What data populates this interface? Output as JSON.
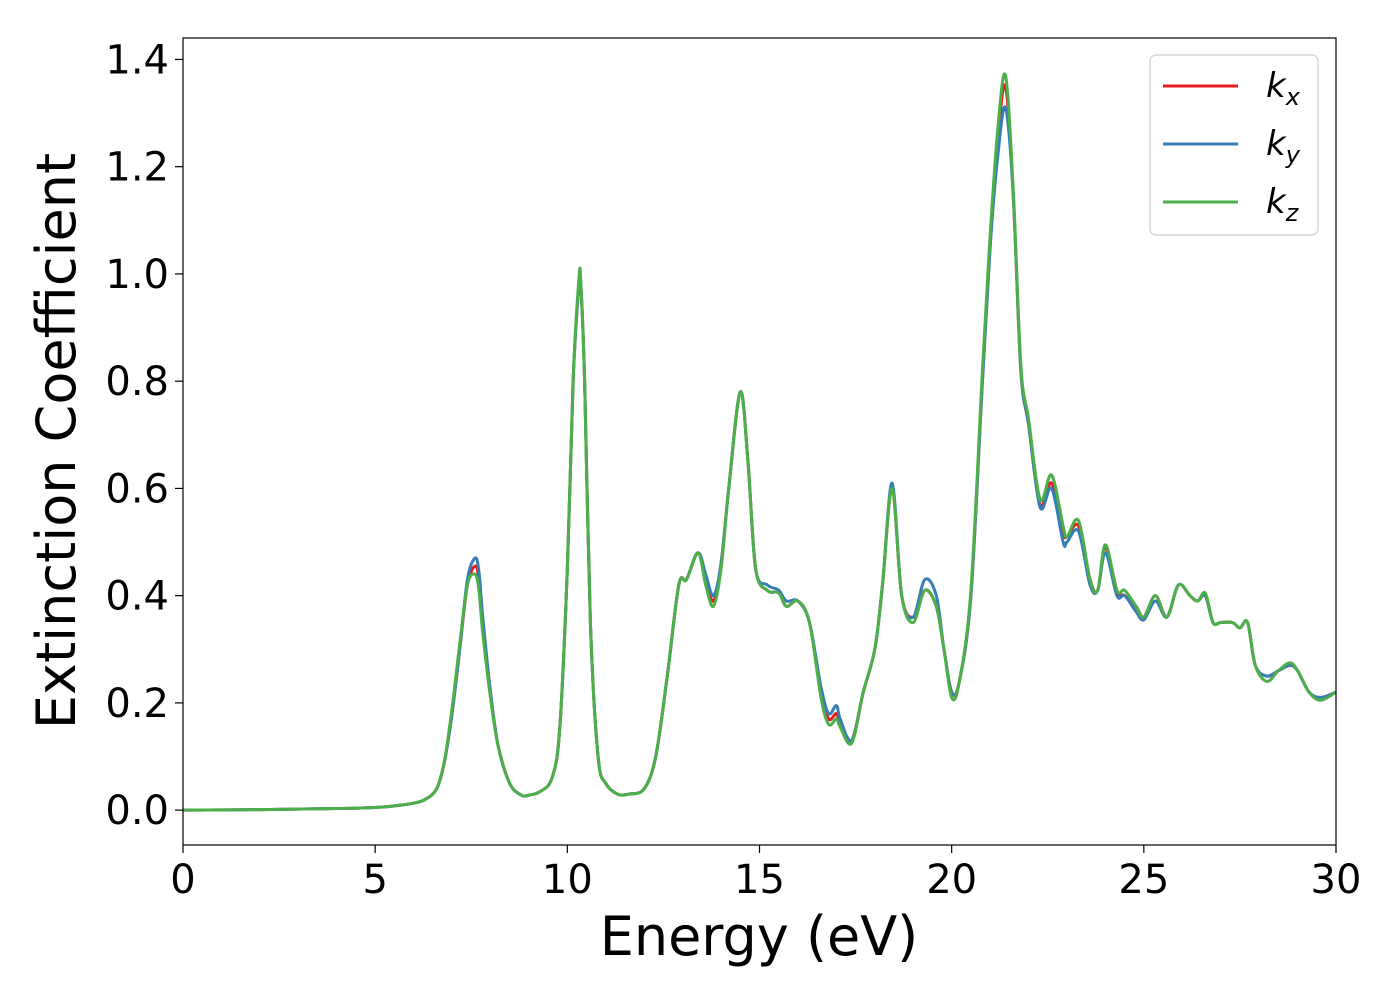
{
  "chart_data": {
    "type": "line",
    "xlabel": "Energy (eV)",
    "ylabel": "Extinction Coefficient",
    "xlim": [
      0,
      30
    ],
    "ylim": [
      -0.065,
      1.44
    ],
    "x_ticks": [
      "0",
      "5",
      "10",
      "15",
      "20",
      "25",
      "30"
    ],
    "y_ticks": [
      "0.0",
      "0.2",
      "0.4",
      "0.6",
      "0.8",
      "1.0",
      "1.2",
      "1.4"
    ],
    "grid": false,
    "legend_position": "top-right",
    "series": [
      {
        "name": "k_x",
        "legend_main": "k",
        "legend_sub": "x",
        "color": "#e41a1c",
        "x": [
          0,
          2,
          4,
          5,
          5.5,
          6,
          6.3,
          6.6,
          6.8,
          7.0,
          7.2,
          7.4,
          7.6,
          7.7,
          7.8,
          8.0,
          8.2,
          8.5,
          8.8,
          9.0,
          9.3,
          9.6,
          9.8,
          10.0,
          10.15,
          10.3,
          10.35,
          10.45,
          10.6,
          10.8,
          11.0,
          11.3,
          11.6,
          12.0,
          12.3,
          12.6,
          12.9,
          13.1,
          13.4,
          13.6,
          13.8,
          14.0,
          14.2,
          14.5,
          14.7,
          14.9,
          15.2,
          15.5,
          15.7,
          16.0,
          16.3,
          16.6,
          16.8,
          17.0,
          17.1,
          17.4,
          17.7,
          18.0,
          18.2,
          18.45,
          18.7,
          19.0,
          19.3,
          19.6,
          19.8,
          20.0,
          20.2,
          20.5,
          20.8,
          21.0,
          21.2,
          21.4,
          21.6,
          21.8,
          22.0,
          22.3,
          22.6,
          22.9,
          23.0,
          23.3,
          23.6,
          23.8,
          24.0,
          24.3,
          24.5,
          24.8,
          25.0,
          25.3,
          25.6,
          25.9,
          26.2,
          26.4,
          26.6,
          26.8,
          27.0,
          27.3,
          27.5,
          27.7,
          27.9,
          28.2,
          28.5,
          28.8,
          29.0,
          29.3,
          29.6,
          30.0
        ],
        "y": [
          0,
          0.001,
          0.003,
          0.005,
          0.008,
          0.013,
          0.02,
          0.04,
          0.09,
          0.18,
          0.3,
          0.42,
          0.455,
          0.43,
          0.35,
          0.22,
          0.12,
          0.05,
          0.028,
          0.028,
          0.035,
          0.06,
          0.15,
          0.45,
          0.8,
          0.98,
          0.98,
          0.8,
          0.35,
          0.1,
          0.05,
          0.03,
          0.03,
          0.04,
          0.1,
          0.25,
          0.42,
          0.43,
          0.48,
          0.43,
          0.39,
          0.46,
          0.6,
          0.78,
          0.65,
          0.45,
          0.41,
          0.405,
          0.38,
          0.39,
          0.35,
          0.22,
          0.17,
          0.18,
          0.16,
          0.13,
          0.22,
          0.3,
          0.42,
          0.6,
          0.4,
          0.36,
          0.41,
          0.38,
          0.3,
          0.22,
          0.24,
          0.4,
          0.8,
          1.05,
          1.25,
          1.35,
          1.15,
          0.82,
          0.72,
          0.57,
          0.61,
          0.52,
          0.51,
          0.53,
          0.43,
          0.41,
          0.49,
          0.41,
          0.4,
          0.38,
          0.36,
          0.4,
          0.36,
          0.42,
          0.4,
          0.39,
          0.4,
          0.35,
          0.35,
          0.35,
          0.34,
          0.35,
          0.27,
          0.25,
          0.26,
          0.27,
          0.26,
          0.22,
          0.21,
          0.22
        ]
      },
      {
        "name": "k_y",
        "legend_main": "k",
        "legend_sub": "y",
        "color": "#377eb8",
        "x": [
          0,
          2,
          4,
          5,
          5.5,
          6,
          6.3,
          6.6,
          6.8,
          7.0,
          7.2,
          7.4,
          7.6,
          7.7,
          7.8,
          8.0,
          8.2,
          8.5,
          8.8,
          9.0,
          9.3,
          9.6,
          9.8,
          10.0,
          10.15,
          10.3,
          10.35,
          10.45,
          10.6,
          10.8,
          11.0,
          11.3,
          11.6,
          12.0,
          12.3,
          12.6,
          12.9,
          13.1,
          13.4,
          13.6,
          13.8,
          14.0,
          14.2,
          14.5,
          14.7,
          14.9,
          15.2,
          15.5,
          15.7,
          16.0,
          16.3,
          16.6,
          16.8,
          17.0,
          17.1,
          17.4,
          17.7,
          18.0,
          18.2,
          18.45,
          18.7,
          19.0,
          19.3,
          19.6,
          19.8,
          20.0,
          20.2,
          20.5,
          20.8,
          21.0,
          21.2,
          21.4,
          21.6,
          21.8,
          22.0,
          22.3,
          22.6,
          22.9,
          23.0,
          23.3,
          23.6,
          23.8,
          24.0,
          24.3,
          24.5,
          24.8,
          25.0,
          25.3,
          25.6,
          25.9,
          26.2,
          26.4,
          26.6,
          26.8,
          27.0,
          27.3,
          27.5,
          27.7,
          27.9,
          28.2,
          28.5,
          28.8,
          29.0,
          29.3,
          29.6,
          30.0
        ],
        "y": [
          0,
          0.001,
          0.003,
          0.005,
          0.008,
          0.013,
          0.02,
          0.04,
          0.09,
          0.18,
          0.3,
          0.43,
          0.47,
          0.445,
          0.36,
          0.22,
          0.12,
          0.05,
          0.028,
          0.028,
          0.035,
          0.06,
          0.15,
          0.45,
          0.8,
          0.98,
          0.98,
          0.8,
          0.35,
          0.1,
          0.05,
          0.03,
          0.03,
          0.04,
          0.1,
          0.25,
          0.42,
          0.43,
          0.48,
          0.44,
          0.4,
          0.46,
          0.6,
          0.78,
          0.65,
          0.45,
          0.42,
          0.41,
          0.39,
          0.39,
          0.35,
          0.23,
          0.18,
          0.195,
          0.17,
          0.13,
          0.22,
          0.3,
          0.42,
          0.61,
          0.4,
          0.36,
          0.43,
          0.4,
          0.3,
          0.22,
          0.24,
          0.4,
          0.8,
          1.05,
          1.22,
          1.31,
          1.15,
          0.82,
          0.72,
          0.565,
          0.6,
          0.5,
          0.5,
          0.52,
          0.42,
          0.41,
          0.48,
          0.4,
          0.4,
          0.37,
          0.355,
          0.39,
          0.36,
          0.42,
          0.4,
          0.39,
          0.4,
          0.35,
          0.35,
          0.35,
          0.34,
          0.35,
          0.27,
          0.25,
          0.26,
          0.27,
          0.26,
          0.22,
          0.21,
          0.22
        ]
      },
      {
        "name": "k_z",
        "legend_main": "k",
        "legend_sub": "z",
        "color": "#4daf4a",
        "x": [
          0,
          2,
          4,
          5,
          5.5,
          6,
          6.3,
          6.6,
          6.8,
          7.0,
          7.2,
          7.4,
          7.6,
          7.7,
          7.8,
          8.0,
          8.2,
          8.5,
          8.8,
          9.0,
          9.3,
          9.6,
          9.8,
          10.0,
          10.15,
          10.3,
          10.35,
          10.45,
          10.6,
          10.8,
          11.0,
          11.3,
          11.6,
          12.0,
          12.3,
          12.6,
          12.9,
          13.1,
          13.4,
          13.6,
          13.8,
          14.0,
          14.2,
          14.5,
          14.7,
          14.9,
          15.2,
          15.5,
          15.7,
          16.0,
          16.3,
          16.6,
          16.8,
          17.0,
          17.1,
          17.4,
          17.7,
          18.0,
          18.2,
          18.45,
          18.7,
          19.0,
          19.3,
          19.6,
          19.8,
          20.0,
          20.2,
          20.5,
          20.8,
          21.0,
          21.2,
          21.4,
          21.6,
          21.8,
          22.0,
          22.3,
          22.6,
          22.9,
          23.0,
          23.3,
          23.6,
          23.8,
          24.0,
          24.3,
          24.5,
          24.8,
          25.0,
          25.3,
          25.6,
          25.9,
          26.2,
          26.4,
          26.6,
          26.8,
          27.0,
          27.3,
          27.5,
          27.7,
          27.9,
          28.2,
          28.5,
          28.8,
          29.0,
          29.3,
          29.6,
          30.0
        ],
        "y": [
          0,
          0.001,
          0.003,
          0.005,
          0.008,
          0.013,
          0.02,
          0.04,
          0.09,
          0.19,
          0.31,
          0.42,
          0.44,
          0.41,
          0.33,
          0.21,
          0.12,
          0.05,
          0.028,
          0.028,
          0.035,
          0.06,
          0.15,
          0.45,
          0.8,
          0.99,
          0.985,
          0.8,
          0.35,
          0.1,
          0.05,
          0.03,
          0.03,
          0.04,
          0.1,
          0.25,
          0.42,
          0.43,
          0.48,
          0.42,
          0.38,
          0.45,
          0.6,
          0.78,
          0.65,
          0.45,
          0.41,
          0.405,
          0.38,
          0.39,
          0.35,
          0.21,
          0.16,
          0.17,
          0.155,
          0.125,
          0.22,
          0.3,
          0.42,
          0.6,
          0.4,
          0.35,
          0.41,
          0.38,
          0.3,
          0.21,
          0.24,
          0.41,
          0.82,
          1.07,
          1.27,
          1.37,
          1.16,
          0.83,
          0.73,
          0.58,
          0.625,
          0.53,
          0.51,
          0.54,
          0.43,
          0.41,
          0.495,
          0.41,
          0.41,
          0.38,
          0.36,
          0.4,
          0.36,
          0.42,
          0.4,
          0.39,
          0.405,
          0.35,
          0.35,
          0.35,
          0.34,
          0.35,
          0.27,
          0.24,
          0.26,
          0.275,
          0.26,
          0.22,
          0.205,
          0.22
        ]
      }
    ]
  }
}
